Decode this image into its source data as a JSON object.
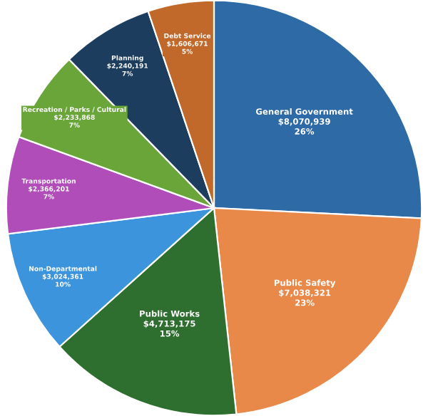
{
  "chart_data": {
    "type": "pie",
    "categories": [
      "General Government",
      "Public Safety",
      "Public Works",
      "Non-Departmental",
      "Transportation",
      "Recreation / Parks / Cultural",
      "Planning",
      "Debt Service"
    ],
    "values": [
      8070939,
      7038321,
      4713175,
      3024361,
      2366201,
      2233868,
      2240191,
      1606671
    ],
    "value_labels": [
      "$8,070,939\n26%",
      "$7,038,321\n23%",
      "$4,713,175\n15%",
      "$3,024,361\n10%",
      "$2,366,201\n7%",
      "$2,233,868\n7%",
      "$2,240,191\n7%",
      "$1,606,671\n5%"
    ],
    "colors": [
      "#2e6aa6",
      "#e8894a",
      "#2e6e2e",
      "#3b94dc",
      "#b04db8",
      "#6aa53a",
      "#1d3d5e",
      "#c0692a"
    ],
    "legend": false
  }
}
